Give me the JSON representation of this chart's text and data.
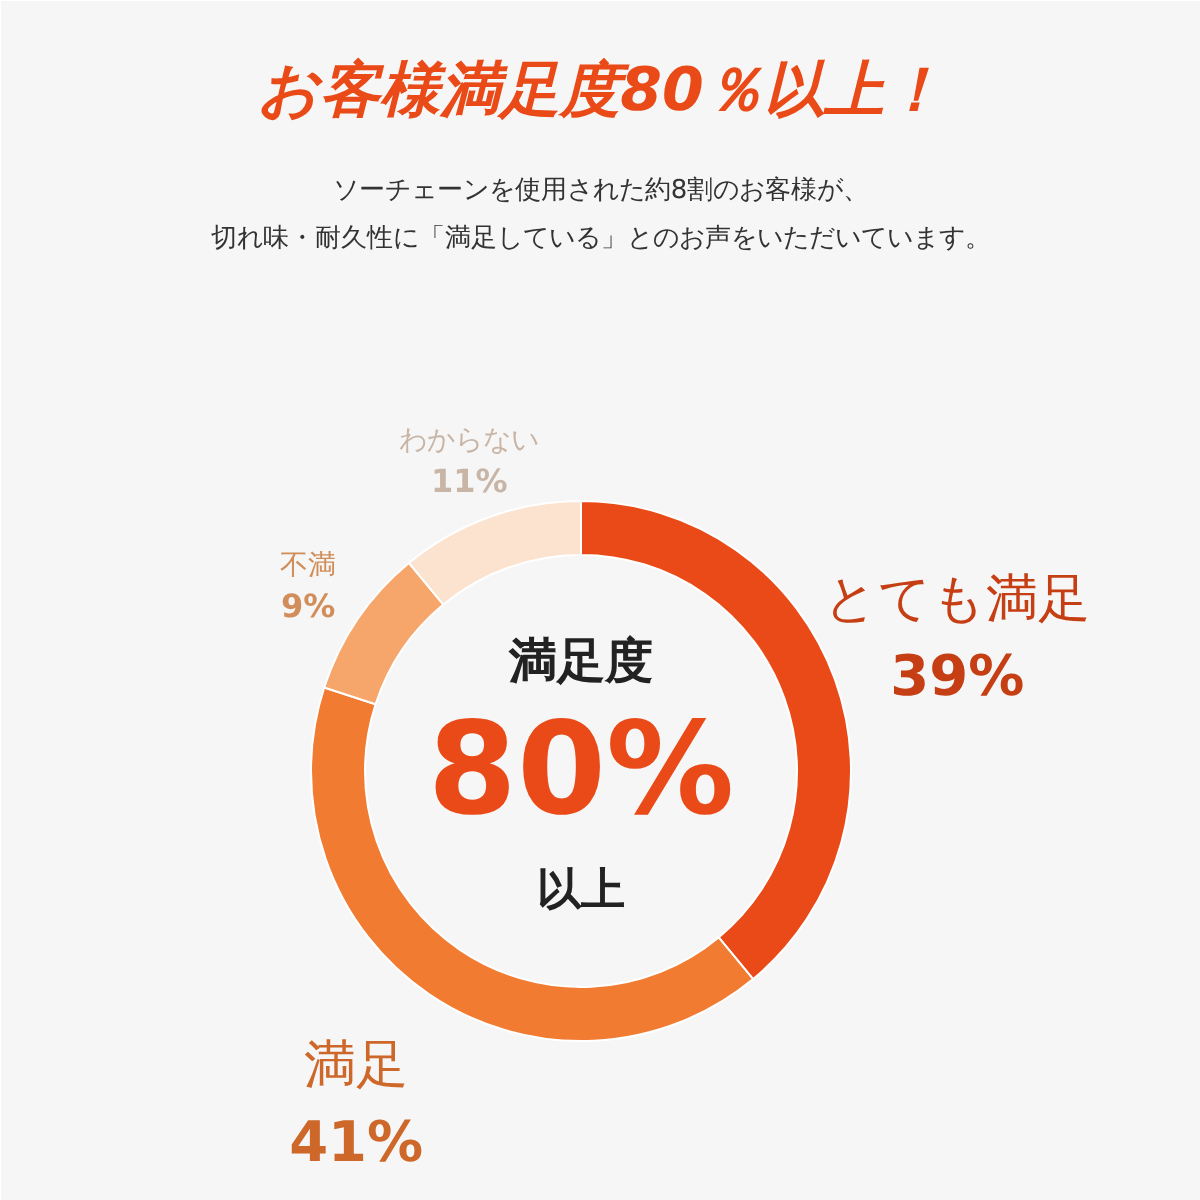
{
  "chart_data": {
    "type": "donut",
    "title": "お客様満足度80％以上！",
    "subtitle": "ソーチェーンを使用された約8割のお客様が、",
    "categories": [
      "とても満足",
      "満足",
      "不満",
      "わからない"
    ],
    "values": [
      39,
      41,
      9,
      11
    ],
    "colors": [
      "#ea4a17",
      "#f27b32",
      "#f6a66b",
      "#fce3d0"
    ],
    "value_labels": [
      "39%",
      "41%",
      "9%",
      "11%"
    ],
    "annotations": [
      "切れ味・耐久性に「満足している」とのお声をいただいています。",
      "満足度",
      "80%",
      "以上"
    ]
  }
}
